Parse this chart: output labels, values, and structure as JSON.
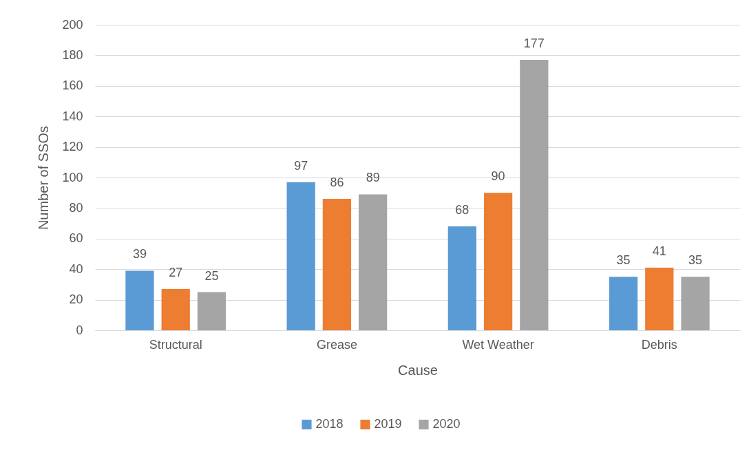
{
  "chart_data": {
    "type": "bar",
    "xlabel": "Cause",
    "ylabel": "Number of SSOs",
    "categories": [
      "Structural",
      "Grease",
      "Wet Weather",
      "Debris"
    ],
    "series": [
      {
        "name": "2018",
        "color": "#5b9bd5",
        "values": [
          39,
          97,
          68,
          35
        ]
      },
      {
        "name": "2019",
        "color": "#ed7d31",
        "values": [
          27,
          86,
          90,
          41
        ]
      },
      {
        "name": "2020",
        "color": "#a5a5a5",
        "values": [
          25,
          89,
          177,
          35
        ]
      }
    ],
    "ylim": [
      0,
      200
    ],
    "yticks": [
      0,
      20,
      40,
      60,
      80,
      100,
      120,
      140,
      160,
      180,
      200
    ],
    "grid": "y",
    "legend": "bottom",
    "data_labels": true
  }
}
